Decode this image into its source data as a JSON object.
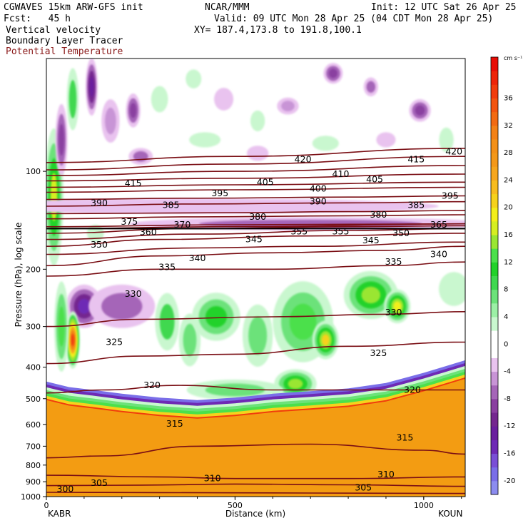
{
  "header": {
    "model": "CGWAVES 15km ARW-GFS init",
    "center": "NCAR/MMM",
    "init": "Init: 12 UTC Sat 26 Apr 25",
    "fcst": "Fcst:   45 h",
    "valid": "Valid: 09 UTC Mon 28 Apr 25 (04 CDT Mon 28 Apr 25)",
    "field1": "Vertical velocity",
    "field2": "Boundary Layer Tracer",
    "field3": "Potential Temperature",
    "xy": "XY= 187.4,173.8 to 191.8,100.1"
  },
  "colors": {
    "theta_contour": "#7a0e14",
    "theta_label_color": "#000000",
    "field3_text": "#8b1a1a",
    "boundary_layer_tracer": "#f39c12"
  },
  "chart_data": {
    "type": "heatmap",
    "title": "Vertical velocity",
    "xlabel": "Distance (km)",
    "ylabel": "Pressure (hPa), log scale",
    "x_ticks": [
      0,
      500,
      1000
    ],
    "x_tick_labels": [
      "0",
      "500",
      "1000"
    ],
    "y_ticks": [
      100,
      200,
      300,
      400,
      500,
      600,
      700,
      800,
      900,
      1000
    ],
    "y_tick_labels": [
      "100",
      "200",
      "300",
      "400",
      "500",
      "600",
      "700",
      "800",
      "900",
      "1000"
    ],
    "xlim": [
      0,
      1110
    ],
    "ylim_pressure_hpa": [
      1000,
      45
    ],
    "y_scale": "log",
    "endpoints": {
      "left": "KABR",
      "right": "KOUN"
    },
    "colorbar": {
      "units": "cm s⁻¹",
      "tick_labels": [
        "36",
        "32",
        "28",
        "24",
        "20",
        "16",
        "12",
        "8",
        "4",
        "0",
        "-4",
        "-8",
        "-12",
        "-16",
        "-20"
      ],
      "levels": [
        {
          "lo": -22,
          "hi": -20,
          "color": "#8c8cf0"
        },
        {
          "lo": -20,
          "hi": -18,
          "color": "#7a6ee8"
        },
        {
          "lo": -18,
          "hi": -16,
          "color": "#7a4fd6"
        },
        {
          "lo": -16,
          "hi": -14,
          "color": "#6e2ab5"
        },
        {
          "lo": -14,
          "hi": -12,
          "color": "#6a1f9e"
        },
        {
          "lo": -12,
          "hi": -10,
          "color": "#74278f"
        },
        {
          "lo": -10,
          "hi": -8,
          "color": "#8a3fa0"
        },
        {
          "lo": -8,
          "hi": -6,
          "color": "#a565b8"
        },
        {
          "lo": -6,
          "hi": -4,
          "color": "#c894d6"
        },
        {
          "lo": -4,
          "hi": -2,
          "color": "#e9c3ef"
        },
        {
          "lo": -2,
          "hi": 2,
          "color": "#ffffff"
        },
        {
          "lo": 2,
          "hi": 4,
          "color": "#c9f7cf"
        },
        {
          "lo": 4,
          "hi": 6,
          "color": "#9cf0a6"
        },
        {
          "lo": 6,
          "hi": 8,
          "color": "#6ce27a"
        },
        {
          "lo": 8,
          "hi": 10,
          "color": "#3fd84f"
        },
        {
          "lo": 10,
          "hi": 12,
          "color": "#22d22a"
        },
        {
          "lo": 12,
          "hi": 14,
          "color": "#4be04b"
        },
        {
          "lo": 14,
          "hi": 16,
          "color": "#9ae632"
        },
        {
          "lo": 16,
          "hi": 18,
          "color": "#d6ee22"
        },
        {
          "lo": 18,
          "hi": 20,
          "color": "#f3ee1a"
        },
        {
          "lo": 20,
          "hi": 22,
          "color": "#f6d21c"
        },
        {
          "lo": 22,
          "hi": 24,
          "color": "#f7bc1f"
        },
        {
          "lo": 24,
          "hi": 26,
          "color": "#f6a61e"
        },
        {
          "lo": 26,
          "hi": 28,
          "color": "#f4981a"
        },
        {
          "lo": 28,
          "hi": 30,
          "color": "#f39018"
        },
        {
          "lo": 30,
          "hi": 32,
          "color": "#f38116"
        },
        {
          "lo": 32,
          "hi": 34,
          "color": "#f26a12"
        },
        {
          "lo": 34,
          "hi": 36,
          "color": "#f2540f"
        },
        {
          "lo": 36,
          "hi": 38,
          "color": "#f13c0c"
        },
        {
          "lo": 38,
          "hi": 40,
          "color": "#ee2408"
        },
        {
          "lo": 40,
          "hi": 42,
          "color": "#e80d05"
        }
      ]
    },
    "theta_contours": [
      {
        "value": 300,
        "points": [
          [
            0,
            970
          ],
          [
            300,
            972
          ],
          [
            700,
            975
          ],
          [
            1110,
            978
          ]
        ],
        "labels": [
          [
            50,
            948
          ]
        ]
      },
      {
        "value": 305,
        "points": [
          [
            0,
            925
          ],
          [
            250,
            922
          ],
          [
            500,
            915
          ],
          [
            800,
            920
          ],
          [
            1110,
            930
          ]
        ],
        "labels": [
          [
            140,
            908
          ],
          [
            840,
            940
          ]
        ]
      },
      {
        "value": 310,
        "points": [
          [
            0,
            860
          ],
          [
            300,
            870
          ],
          [
            500,
            880
          ],
          [
            800,
            880
          ],
          [
            1110,
            870
          ]
        ],
        "labels": [
          [
            440,
            880
          ],
          [
            900,
            855
          ]
        ]
      },
      {
        "value": 315,
        "points": [
          [
            0,
            760
          ],
          [
            150,
            750
          ],
          [
            400,
            700
          ],
          [
            700,
            690
          ],
          [
            1000,
            720
          ],
          [
            1110,
            740
          ]
        ],
        "labels": [
          [
            340,
            598
          ],
          [
            950,
            660
          ]
        ]
      },
      {
        "value": 320,
        "points": [
          [
            0,
            480
          ],
          [
            150,
            470
          ],
          [
            350,
            455
          ],
          [
            600,
            470
          ],
          [
            900,
            470
          ],
          [
            1110,
            470
          ]
        ],
        "labels": [
          [
            280,
            455
          ],
          [
            970,
            470
          ]
        ]
      },
      {
        "value": 325,
        "points": [
          [
            0,
            390
          ],
          [
            250,
            370
          ],
          [
            500,
            365
          ],
          [
            800,
            345
          ],
          [
            1110,
            335
          ]
        ],
        "labels": [
          [
            180,
            335
          ],
          [
            880,
            362
          ]
        ]
      },
      {
        "value": 330,
        "points": [
          [
            0,
            300
          ],
          [
            250,
            285
          ],
          [
            600,
            280
          ],
          [
            900,
            275
          ],
          [
            1110,
            270
          ]
        ],
        "labels": [
          [
            230,
            238
          ],
          [
            920,
            272
          ]
        ]
      },
      {
        "value": 335,
        "points": [
          [
            0,
            210
          ],
          [
            300,
            200
          ],
          [
            600,
            200
          ],
          [
            900,
            195
          ],
          [
            1110,
            190
          ]
        ],
        "labels": [
          [
            320,
            197
          ],
          [
            920,
            190
          ]
        ]
      },
      {
        "value": 340,
        "points": [
          [
            0,
            195
          ],
          [
            300,
            182
          ],
          [
            600,
            178
          ],
          [
            900,
            175
          ],
          [
            1110,
            170
          ]
        ],
        "labels": [
          [
            400,
            185
          ],
          [
            1040,
            180
          ]
        ]
      },
      {
        "value": 345,
        "points": [
          [
            0,
            180
          ],
          [
            400,
            172
          ],
          [
            700,
            170
          ],
          [
            1110,
            165
          ]
        ],
        "labels": [
          [
            550,
            162
          ],
          [
            860,
            163
          ]
        ]
      },
      {
        "value": 350,
        "points": [
          [
            0,
            170
          ],
          [
            300,
            162
          ],
          [
            700,
            158
          ],
          [
            1110,
            155
          ]
        ],
        "labels": [
          [
            140,
            168
          ],
          [
            940,
            155
          ]
        ]
      },
      {
        "value": 355,
        "points": [
          [
            0,
            162
          ],
          [
            400,
            156
          ],
          [
            800,
            152
          ],
          [
            1110,
            150
          ]
        ],
        "labels": [
          [
            670,
            153
          ],
          [
            780,
            153
          ]
        ]
      },
      {
        "value": 360,
        "points": [
          [
            0,
            155
          ],
          [
            400,
            150
          ],
          [
            800,
            148
          ],
          [
            1110,
            147
          ]
        ],
        "labels": [
          [
            270,
            154
          ]
        ]
      },
      {
        "value": 365,
        "points": [
          [
            0,
            150
          ],
          [
            500,
            148
          ],
          [
            1110,
            145
          ]
        ],
        "labels": [
          [
            1040,
            146
          ]
        ]
      },
      {
        "value": 370,
        "points": [
          [
            0,
            148
          ],
          [
            500,
            146
          ],
          [
            1110,
            145
          ]
        ],
        "labels": [
          [
            360,
            146
          ]
        ]
      },
      {
        "value": 375,
        "points": [
          [
            0,
            140
          ],
          [
            400,
            138
          ],
          [
            800,
            137
          ],
          [
            1110,
            136
          ]
        ],
        "labels": [
          [
            220,
            143
          ]
        ]
      },
      {
        "value": 380,
        "points": [
          [
            0,
            135
          ],
          [
            500,
            134
          ],
          [
            800,
            133
          ],
          [
            1110,
            132
          ]
        ],
        "labels": [
          [
            560,
            138
          ],
          [
            880,
            136
          ]
        ]
      },
      {
        "value": 385,
        "points": [
          [
            0,
            128
          ],
          [
            400,
            126
          ],
          [
            800,
            125
          ],
          [
            1110,
            124
          ]
        ],
        "labels": [
          [
            330,
            127
          ],
          [
            980,
            127
          ]
        ]
      },
      {
        "value": 390,
        "points": [
          [
            0,
            122
          ],
          [
            400,
            121
          ],
          [
            800,
            120
          ],
          [
            1110,
            119
          ]
        ],
        "labels": [
          [
            140,
            125
          ],
          [
            720,
            124
          ]
        ]
      },
      {
        "value": 395,
        "points": [
          [
            0,
            116
          ],
          [
            500,
            114
          ],
          [
            1110,
            112
          ]
        ],
        "labels": [
          [
            460,
            117
          ],
          [
            1070,
            119
          ]
        ]
      },
      {
        "value": 400,
        "points": [
          [
            0,
            112
          ],
          [
            500,
            110
          ],
          [
            1110,
            108
          ]
        ],
        "labels": [
          [
            720,
            113
          ]
        ]
      },
      {
        "value": 405,
        "points": [
          [
            0,
            107
          ],
          [
            500,
            105
          ],
          [
            1110,
            102
          ]
        ],
        "labels": [
          [
            580,
            108
          ],
          [
            870,
            106
          ]
        ]
      },
      {
        "value": 410,
        "points": [
          [
            0,
            103
          ],
          [
            500,
            100
          ],
          [
            1110,
            96
          ]
        ],
        "labels": [
          [
            780,
            102
          ]
        ]
      },
      {
        "value": 415,
        "points": [
          [
            0,
            99
          ],
          [
            500,
            95
          ],
          [
            1110,
            90
          ]
        ],
        "labels": [
          [
            230,
            109
          ],
          [
            980,
            92
          ]
        ]
      },
      {
        "value": 420,
        "points": [
          [
            0,
            94
          ],
          [
            500,
            90
          ],
          [
            1110,
            85
          ]
        ],
        "labels": [
          [
            680,
            92
          ],
          [
            1080,
            87
          ]
        ]
      }
    ],
    "tropopause_line_hpa": 150,
    "blobs": [
      {
        "x": 20,
        "p": 120,
        "rx": 16,
        "ry": 140,
        "w": 16
      },
      {
        "x": 40,
        "p": 80,
        "rx": 10,
        "ry": 70,
        "w": -10
      },
      {
        "x": 70,
        "p": 60,
        "rx": 10,
        "ry": 60,
        "w": 8
      },
      {
        "x": 120,
        "p": 55,
        "rx": 10,
        "ry": 55,
        "w": -14
      },
      {
        "x": 170,
        "p": 70,
        "rx": 15,
        "ry": 40,
        "w": -6
      },
      {
        "x": 230,
        "p": 65,
        "rx": 12,
        "ry": 30,
        "w": -10
      },
      {
        "x": 300,
        "p": 60,
        "rx": 14,
        "ry": 22,
        "w": 5
      },
      {
        "x": 390,
        "p": 52,
        "rx": 13,
        "ry": 14,
        "w": 4
      },
      {
        "x": 470,
        "p": 60,
        "rx": 16,
        "ry": 18,
        "w": -5
      },
      {
        "x": 560,
        "p": 70,
        "rx": 12,
        "ry": 16,
        "w": 4
      },
      {
        "x": 640,
        "p": 63,
        "rx": 18,
        "ry": 12,
        "w": -6
      },
      {
        "x": 760,
        "p": 50,
        "rx": 16,
        "ry": 16,
        "w": -10
      },
      {
        "x": 860,
        "p": 55,
        "rx": 12,
        "ry": 14,
        "w": -8
      },
      {
        "x": 990,
        "p": 65,
        "rx": 18,
        "ry": 18,
        "w": -10
      },
      {
        "x": 1060,
        "p": 80,
        "rx": 12,
        "ry": 20,
        "w": 4
      },
      {
        "x": 250,
        "p": 90,
        "rx": 20,
        "ry": 12,
        "w": -7
      },
      {
        "x": 420,
        "p": 80,
        "rx": 26,
        "ry": 10,
        "w": 4
      },
      {
        "x": 560,
        "p": 88,
        "rx": 18,
        "ry": 10,
        "w": -5
      },
      {
        "x": 740,
        "p": 82,
        "rx": 22,
        "ry": 10,
        "w": 4
      },
      {
        "x": 900,
        "p": 80,
        "rx": 16,
        "ry": 10,
        "w": -5
      },
      {
        "x": 400,
        "p": 128,
        "rx": 400,
        "ry": 10,
        "w": -4
      },
      {
        "x": 700,
        "p": 145,
        "rx": 300,
        "ry": 8,
        "w": -7
      },
      {
        "x": 130,
        "p": 155,
        "rx": 14,
        "ry": 12,
        "w": 5
      },
      {
        "x": 100,
        "p": 260,
        "rx": 30,
        "ry": 40,
        "w": -16
      },
      {
        "x": 200,
        "p": 260,
        "rx": 55,
        "ry": 40,
        "w": -8
      },
      {
        "x": 70,
        "p": 330,
        "rx": 12,
        "ry": 55,
        "w": 36
      },
      {
        "x": 40,
        "p": 300,
        "rx": 12,
        "ry": 90,
        "w": 12
      },
      {
        "x": 320,
        "p": 290,
        "rx": 20,
        "ry": 55,
        "w": 8
      },
      {
        "x": 380,
        "p": 330,
        "rx": 18,
        "ry": 50,
        "w": 6
      },
      {
        "x": 450,
        "p": 280,
        "rx": 40,
        "ry": 45,
        "w": 10
      },
      {
        "x": 560,
        "p": 320,
        "rx": 25,
        "ry": 60,
        "w": 6
      },
      {
        "x": 680,
        "p": 290,
        "rx": 50,
        "ry": 80,
        "w": 12
      },
      {
        "x": 740,
        "p": 330,
        "rx": 22,
        "ry": 35,
        "w": 20
      },
      {
        "x": 860,
        "p": 240,
        "rx": 45,
        "ry": 45,
        "w": 14
      },
      {
        "x": 930,
        "p": 260,
        "rx": 22,
        "ry": 30,
        "w": 18
      },
      {
        "x": 1080,
        "p": 230,
        "rx": 25,
        "ry": 30,
        "w": 4
      },
      {
        "x": 660,
        "p": 450,
        "rx": 35,
        "ry": 25,
        "w": 14
      },
      {
        "x": 500,
        "p": 470,
        "rx": 80,
        "ry": 16,
        "w": 6
      }
    ],
    "boundary_layer_top_hpa": [
      [
        0,
        500
      ],
      [
        60,
        520
      ],
      [
        120,
        530
      ],
      [
        200,
        545
      ],
      [
        300,
        560
      ],
      [
        400,
        570
      ],
      [
        500,
        560
      ],
      [
        600,
        545
      ],
      [
        700,
        535
      ],
      [
        800,
        525
      ],
      [
        900,
        505
      ],
      [
        1000,
        470
      ],
      [
        1110,
        430
      ]
    ],
    "boundary_layer_fill_levels": [
      36,
      20,
      12,
      6,
      2,
      -16,
      -20
    ]
  }
}
